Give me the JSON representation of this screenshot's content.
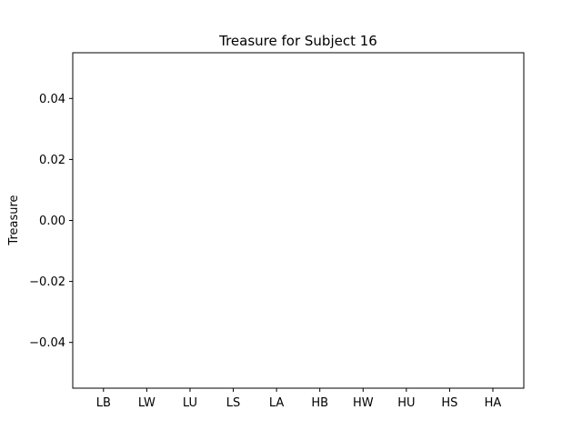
{
  "chart_data": {
    "type": "bar",
    "title": "Treasure for Subject 16",
    "xlabel": "",
    "ylabel": "Treasure",
    "categories": [
      "LB",
      "LW",
      "LU",
      "LS",
      "LA",
      "HB",
      "HW",
      "HU",
      "HS",
      "HA"
    ],
    "values": [
      0,
      0,
      0,
      0,
      0,
      0,
      0,
      0,
      0,
      0
    ],
    "ylim": [
      -0.055,
      0.055
    ],
    "yticks": [
      0.04,
      0.02,
      0.0,
      -0.02,
      -0.04
    ],
    "ytick_labels": [
      "0.04",
      "0.02",
      "0.00",
      "−0.02",
      "−0.04"
    ],
    "grid": false,
    "legend": "none",
    "colors": {
      "axes": "#000000",
      "background": "#ffffff"
    }
  }
}
